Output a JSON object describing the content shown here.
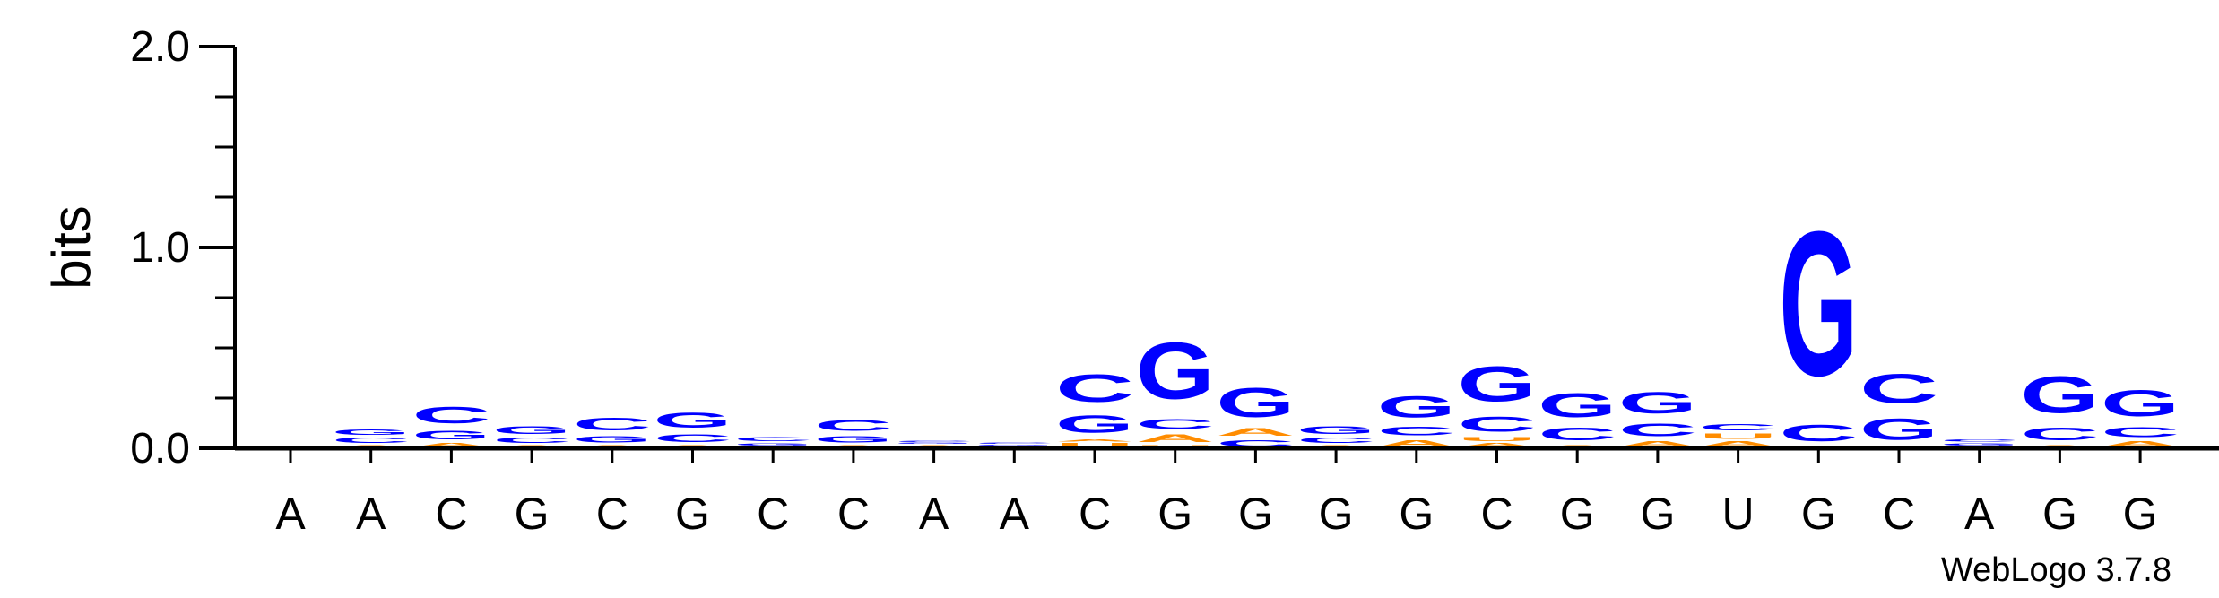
{
  "chart_data": {
    "type": "sequence-logo",
    "ylabel": "bits",
    "ylim": [
      0,
      2
    ],
    "y_ticks": [
      "0.0",
      "1.0",
      "2.0"
    ],
    "x_labels": [
      "A",
      "A",
      "C",
      "G",
      "C",
      "G",
      "C",
      "C",
      "A",
      "A",
      "C",
      "G",
      "G",
      "G",
      "G",
      "C",
      "G",
      "G",
      "U",
      "G",
      "C",
      "A",
      "G",
      "G"
    ],
    "colors": {
      "C": "#0000ff",
      "G": "#0000ff",
      "A": "#ff8c00",
      "U": "#ff8c00"
    },
    "positions": [
      [],
      [
        [
          "A",
          0.02
        ],
        [
          "C",
          0.04
        ],
        [
          "G",
          0.04
        ]
      ],
      [
        [
          "A",
          0.03
        ],
        [
          "G",
          0.07
        ],
        [
          "C",
          0.13
        ]
      ],
      [
        [
          "A",
          0.02
        ],
        [
          "C",
          0.04
        ],
        [
          "G",
          0.06
        ]
      ],
      [
        [
          "A",
          0.02
        ],
        [
          "G",
          0.05
        ],
        [
          "C",
          0.1
        ]
      ],
      [
        [
          "A",
          0.02
        ],
        [
          "C",
          0.06
        ],
        [
          "G",
          0.12
        ]
      ],
      [
        [
          "A",
          0.01
        ],
        [
          "G",
          0.02
        ],
        [
          "C",
          0.03
        ]
      ],
      [
        [
          "A",
          0.02
        ],
        [
          "G",
          0.05
        ],
        [
          "C",
          0.09
        ]
      ],
      [
        [
          "A",
          0.02
        ],
        [
          "G",
          0.01
        ],
        [
          "C",
          0.01
        ]
      ],
      [
        [
          "A",
          0.01
        ],
        [
          "G",
          0.01
        ],
        [
          "C",
          0.01
        ]
      ],
      [
        [
          "U",
          0.03
        ],
        [
          "A",
          0.02
        ],
        [
          "G",
          0.14
        ],
        [
          "C",
          0.22
        ]
      ],
      [
        [
          "U",
          0.02
        ],
        [
          "A",
          0.06
        ],
        [
          "C",
          0.08
        ],
        [
          "G",
          0.45
        ]
      ],
      [
        [
          "C",
          0.05
        ],
        [
          "A",
          0.06
        ],
        [
          "G",
          0.23
        ]
      ],
      [
        [
          "A",
          0.02
        ],
        [
          "C",
          0.04
        ],
        [
          "G",
          0.06
        ]
      ],
      [
        [
          "A",
          0.05
        ],
        [
          "C",
          0.07
        ],
        [
          "G",
          0.17
        ]
      ],
      [
        [
          "A",
          0.03
        ],
        [
          "U",
          0.03
        ],
        [
          "C",
          0.12
        ],
        [
          "G",
          0.28
        ]
      ],
      [
        [
          "A",
          0.02
        ],
        [
          "C",
          0.1
        ],
        [
          "G",
          0.19
        ]
      ],
      [
        [
          "A",
          0.04
        ],
        [
          "C",
          0.1
        ],
        [
          "G",
          0.17
        ]
      ],
      [
        [
          "A",
          0.04
        ],
        [
          "U",
          0.04
        ],
        [
          "C",
          0.05
        ]
      ],
      [
        [
          "A",
          0.01
        ],
        [
          "C",
          0.13
        ],
        [
          "G",
          1.15
        ]
      ],
      [
        [
          "A",
          0.01
        ],
        [
          "G",
          0.17
        ],
        [
          "C",
          0.23
        ]
      ],
      [
        [
          "A",
          0.01
        ],
        [
          "G",
          0.02
        ],
        [
          "C",
          0.02
        ]
      ],
      [
        [
          "A",
          0.02
        ],
        [
          "C",
          0.1
        ],
        [
          "G",
          0.29
        ]
      ],
      [
        [
          "A",
          0.04
        ],
        [
          "C",
          0.08
        ],
        [
          "G",
          0.21
        ]
      ]
    ],
    "footer": "WebLogo 3.7.8"
  }
}
